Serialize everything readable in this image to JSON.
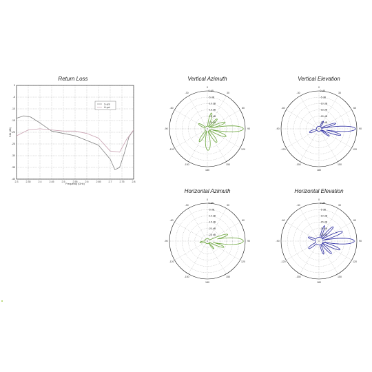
{
  "colors": {
    "vertical_pattern": "#6aa53a",
    "horizontal_pattern": "#2a2aa0",
    "return_loss_line_1": "#808080",
    "return_loss_line_2": "#c8a0b0",
    "grid": "#9a9a9a",
    "stray_mark": "#b9d97a"
  },
  "chart_data": [
    {
      "type": "line",
      "title": "Return Loss",
      "xlabel": "Frequency (GHz)",
      "ylabel": "S11 (dB)",
      "xlim": [
        2.3,
        2.8
      ],
      "ylim": [
        -40,
        0
      ],
      "x_ticks": [
        "2.3",
        "2.35",
        "2.4",
        "2.45",
        "2.5",
        "2.55",
        "2.6",
        "2.65",
        "2.7",
        "2.75",
        "2.8"
      ],
      "y_ticks": [
        "0",
        "-5",
        "-10",
        "-15",
        "-20",
        "-25",
        "-30",
        "-35",
        "-40"
      ],
      "legend": {
        "placement": "top-right",
        "entries": [
          "S-ant",
          "H-pol"
        ]
      },
      "series": [
        {
          "name": "S-ant",
          "x": [
            2.3,
            2.33,
            2.36,
            2.4,
            2.45,
            2.5,
            2.55,
            2.6,
            2.65,
            2.7,
            2.72,
            2.74,
            2.76,
            2.78,
            2.8
          ],
          "y": [
            -14,
            -13,
            -13.5,
            -16,
            -19.5,
            -20.5,
            -21.5,
            -23.5,
            -25.5,
            -31.5,
            -36,
            -35,
            -29,
            -22,
            -19
          ]
        },
        {
          "name": "H-pol",
          "x": [
            2.3,
            2.35,
            2.4,
            2.45,
            2.5,
            2.55,
            2.6,
            2.65,
            2.7,
            2.74,
            2.77,
            2.8
          ],
          "y": [
            -21.5,
            -19,
            -18.5,
            -19,
            -19.5,
            -19.5,
            -20.5,
            -22.5,
            -28,
            -28.5,
            -23,
            -19
          ]
        }
      ]
    },
    {
      "type": "polar",
      "title": "Vertical Azimuth",
      "color_key": "vertical_pattern",
      "r_ticks": [
        "0 dB",
        "-5 dB",
        "-10 dB",
        "-15 dB",
        "-20 dB",
        "-25 dB"
      ],
      "angle_labels": [
        "0",
        "30",
        "60",
        "90",
        "120",
        "150",
        "180",
        "-150",
        "-120",
        "-90",
        "-60",
        "-30"
      ],
      "rlim_db": [
        -30,
        0
      ],
      "lobes": [
        {
          "center_deg": 90,
          "width_deg": 8,
          "peak_db": -1.5
        },
        {
          "center_deg": 70,
          "width_deg": 8,
          "peak_db": -15
        },
        {
          "center_deg": 112,
          "width_deg": 9,
          "peak_db": -14
        },
        {
          "center_deg": 145,
          "width_deg": 12,
          "peak_db": -17
        },
        {
          "center_deg": 178,
          "width_deg": 14,
          "peak_db": -13
        },
        {
          "center_deg": 212,
          "width_deg": 12,
          "peak_db": -18
        },
        {
          "center_deg": 300,
          "width_deg": 16,
          "peak_db": -22
        },
        {
          "center_deg": 15,
          "width_deg": 10,
          "peak_db": -17
        },
        {
          "center_deg": 45,
          "width_deg": 10,
          "peak_db": -19
        }
      ],
      "floor_db": -28
    },
    {
      "type": "polar",
      "title": "Vertical Elevation",
      "color_key": "horizontal_pattern",
      "r_ticks": [
        "0 dB",
        "-5 dB",
        "-10 dB",
        "-15 dB",
        "-20 dB",
        "-25 dB"
      ],
      "angle_labels": [
        "0",
        "30",
        "60",
        "90",
        "120",
        "150",
        "180",
        "-150",
        "-120",
        "-90",
        "-60",
        "-30"
      ],
      "rlim_db": [
        -30,
        0
      ],
      "lobes": [
        {
          "center_deg": 90,
          "width_deg": 7,
          "peak_db": -1
        },
        {
          "center_deg": 106,
          "width_deg": 6,
          "peak_db": -12
        },
        {
          "center_deg": 72,
          "width_deg": 7,
          "peak_db": -16
        },
        {
          "center_deg": 125,
          "width_deg": 8,
          "peak_db": -20
        },
        {
          "center_deg": 250,
          "width_deg": 18,
          "peak_db": -22
        },
        {
          "center_deg": 30,
          "width_deg": 14,
          "peak_db": -23
        }
      ],
      "floor_db": -28
    },
    {
      "type": "polar",
      "title": "Horizontal Azimuth",
      "color_key": "vertical_pattern",
      "r_ticks": [
        "0 dB",
        "-5 dB",
        "-10 dB",
        "-15 dB",
        "-20 dB",
        "-25 dB"
      ],
      "angle_labels": [
        "0",
        "30",
        "60",
        "90",
        "120",
        "150",
        "180",
        "-150",
        "-120",
        "-90",
        "-60",
        "-30"
      ],
      "rlim_db": [
        -30,
        0
      ],
      "lobes": [
        {
          "center_deg": 90,
          "width_deg": 9,
          "peak_db": -1.5
        },
        {
          "center_deg": 72,
          "width_deg": 7,
          "peak_db": -13
        },
        {
          "center_deg": 110,
          "width_deg": 8,
          "peak_db": -16
        },
        {
          "center_deg": 140,
          "width_deg": 10,
          "peak_db": -22
        },
        {
          "center_deg": 260,
          "width_deg": 20,
          "peak_db": -24
        }
      ],
      "floor_db": -28
    },
    {
      "type": "polar",
      "title": "Horizontal Elevation",
      "color_key": "horizontal_pattern",
      "r_ticks": [
        "0 dB",
        "-5 dB",
        "-10 dB",
        "-15 dB",
        "-20 dB",
        "-25 dB"
      ],
      "angle_labels": [
        "0",
        "30",
        "60",
        "90",
        "120",
        "150",
        "180",
        "-150",
        "-120",
        "-90",
        "-60",
        "-30"
      ],
      "rlim_db": [
        -30,
        0
      ],
      "lobes": [
        {
          "center_deg": 90,
          "width_deg": 8,
          "peak_db": -2
        },
        {
          "center_deg": 68,
          "width_deg": 7,
          "peak_db": -10
        },
        {
          "center_deg": 45,
          "width_deg": 7,
          "peak_db": -14
        },
        {
          "center_deg": 20,
          "width_deg": 8,
          "peak_db": -17
        },
        {
          "center_deg": 112,
          "width_deg": 7,
          "peak_db": -12
        },
        {
          "center_deg": 135,
          "width_deg": 8,
          "peak_db": -16
        },
        {
          "center_deg": 160,
          "width_deg": 9,
          "peak_db": -19
        },
        {
          "center_deg": 235,
          "width_deg": 14,
          "peak_db": -20
        },
        {
          "center_deg": 290,
          "width_deg": 14,
          "peak_db": -21
        }
      ],
      "floor_db": -27
    }
  ]
}
